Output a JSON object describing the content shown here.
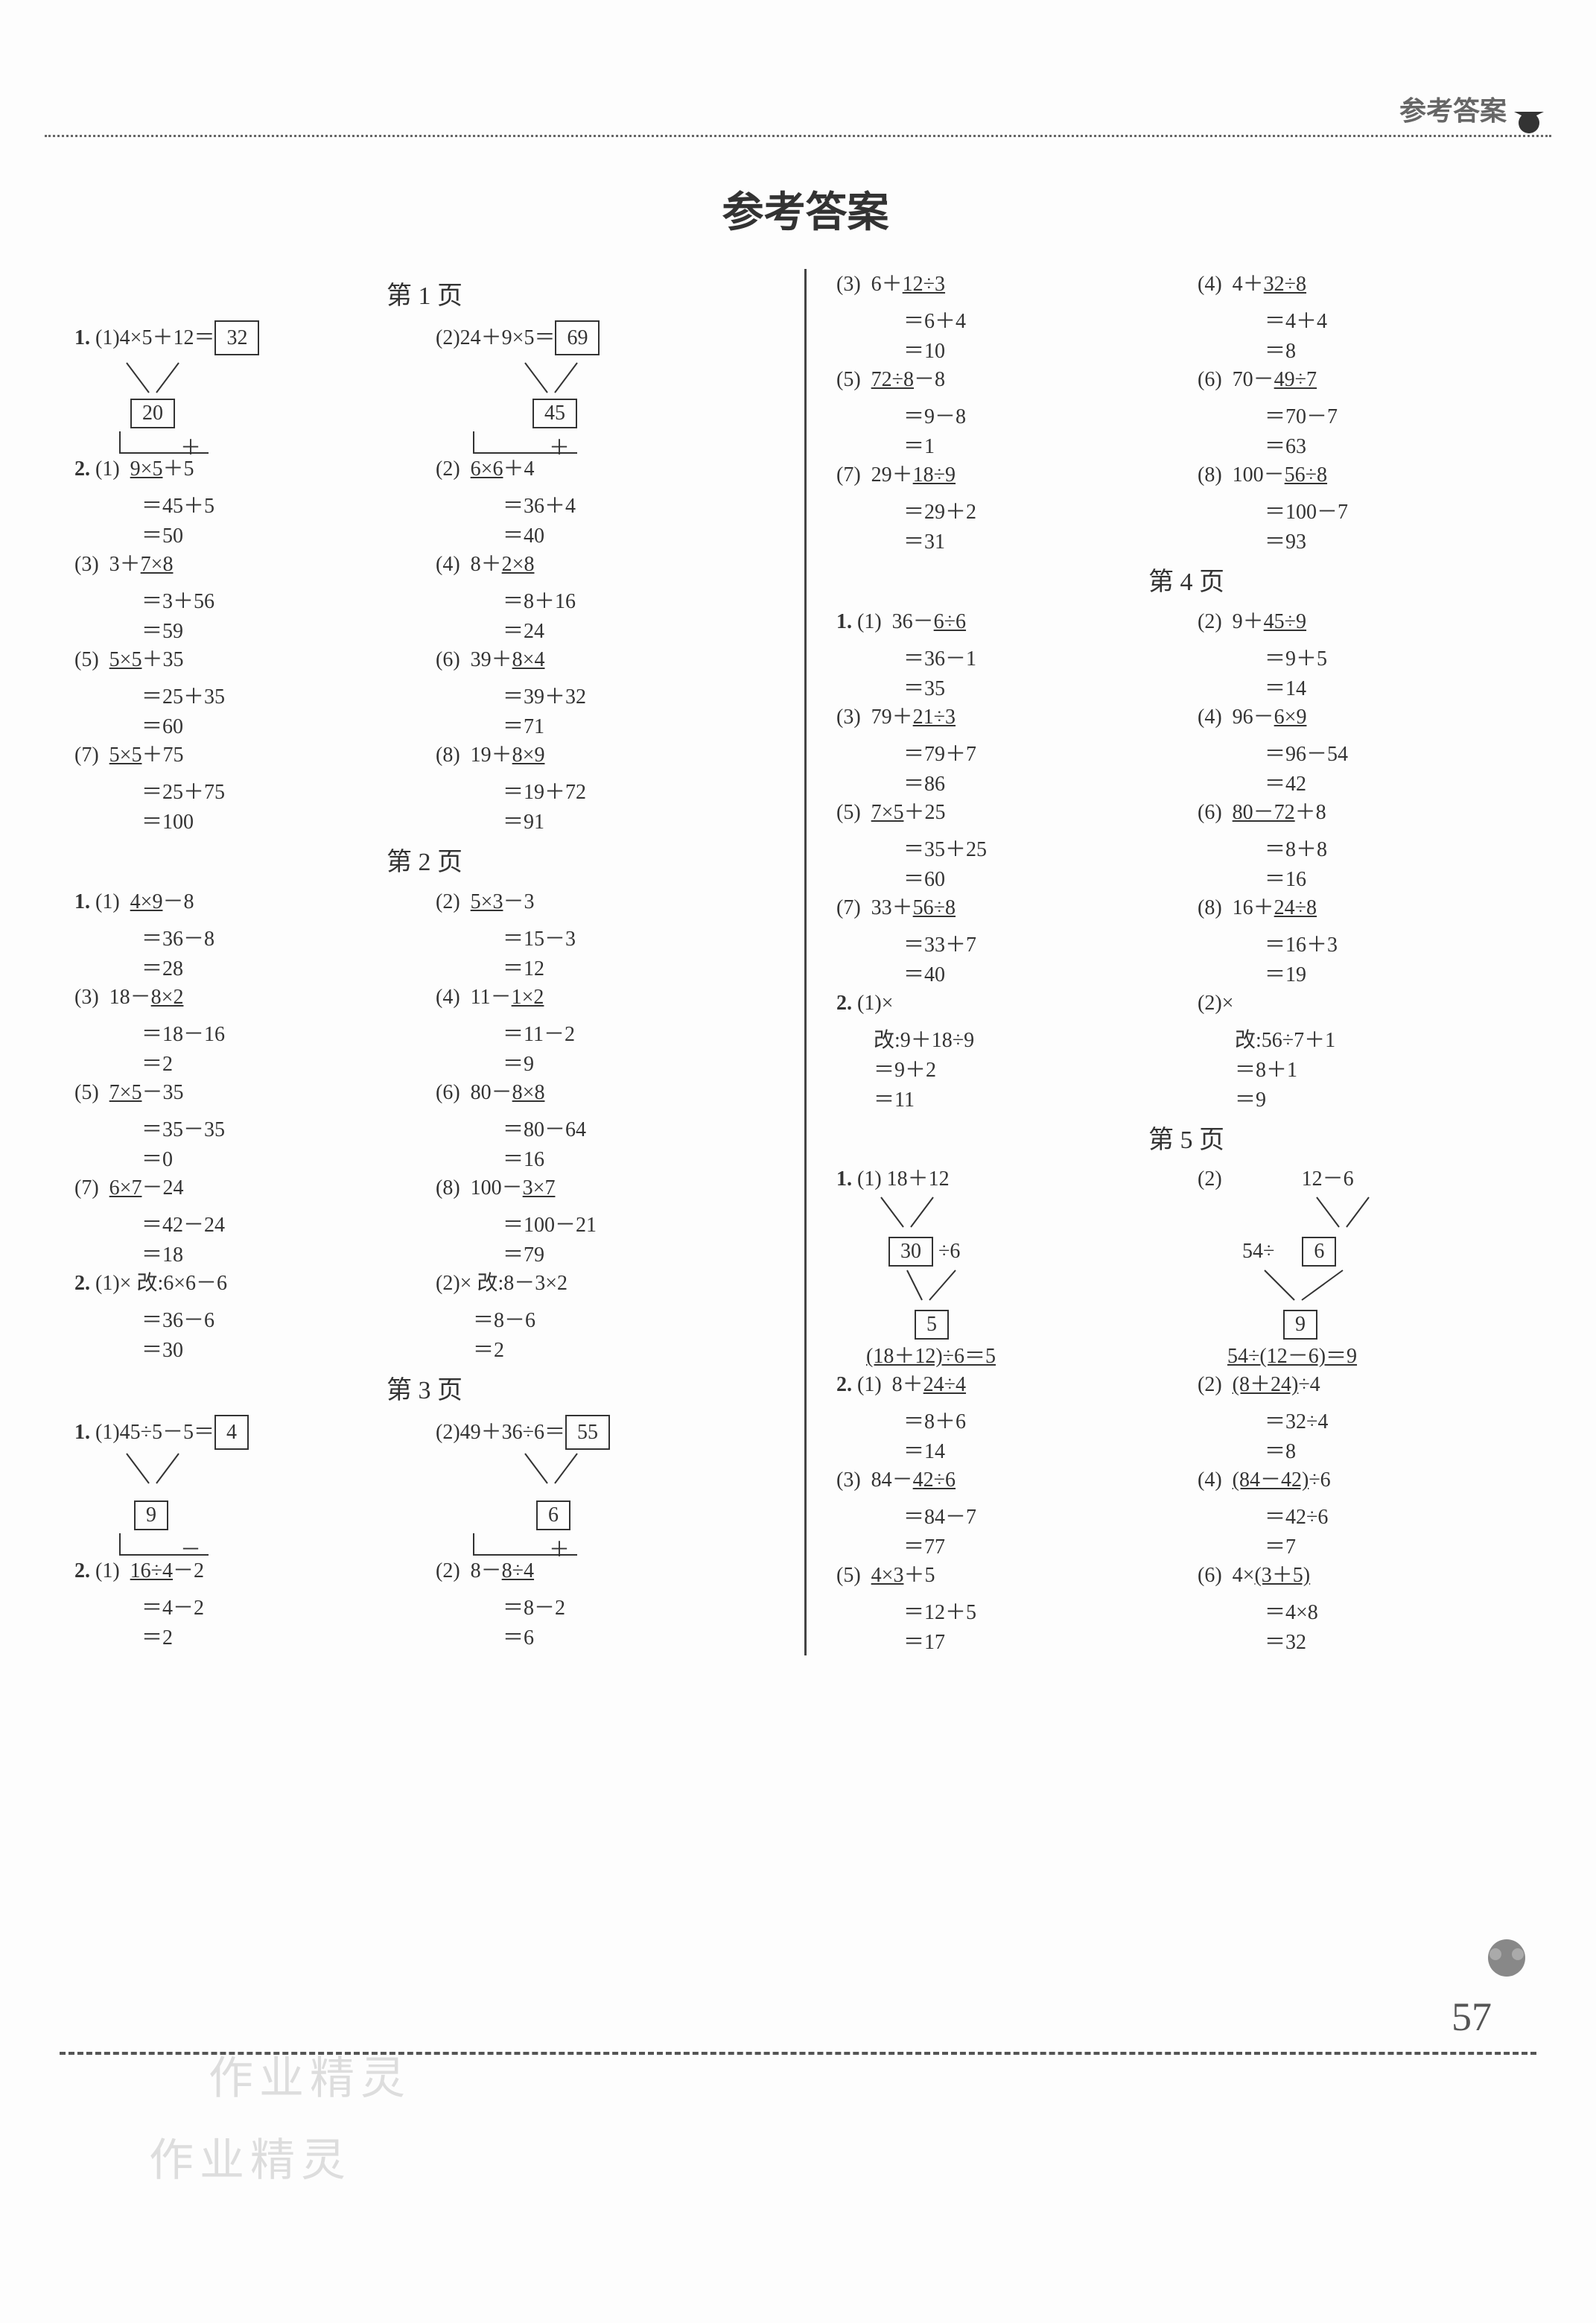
{
  "header_stamp": "参考答案",
  "main_title": "参考答案",
  "page_number": "57",
  "watermark": "作业精灵",
  "labels": {
    "p1": "第 1 页",
    "p2": "第 2 页",
    "p3": "第 3 页",
    "p4": "第 4 页",
    "p5": "第 5 页"
  },
  "p1": {
    "q1a_expr": "4×5＋12＝",
    "q1a_ans": "32",
    "q1a_mid": "20",
    "q1a_op": "＋",
    "q1b_expr": "24＋9×5＝",
    "q1b_ans": "69",
    "q1b_mid": "45",
    "q1b_op": "＋",
    "q2": [
      {
        "n": "(1)",
        "a": "9×5",
        "b": "＋5",
        "s1": "＝45＋5",
        "s2": "＝50"
      },
      {
        "n": "(2)",
        "a": "6×6",
        "b": "＋4",
        "s1": "＝36＋4",
        "s2": "＝40"
      },
      {
        "n": "(3)",
        "a": "3＋",
        "u": "7×8",
        "s1": "＝3＋56",
        "s2": "＝59"
      },
      {
        "n": "(4)",
        "a": "8＋",
        "u": "2×8",
        "s1": "＝8＋16",
        "s2": "＝24"
      },
      {
        "n": "(5)",
        "a": "5×5",
        "b": "＋35",
        "s1": "＝25＋35",
        "s2": "＝60"
      },
      {
        "n": "(6)",
        "a": "39＋",
        "u": "8×4",
        "s1": "＝39＋32",
        "s2": "＝71"
      },
      {
        "n": "(7)",
        "a": "5×5",
        "b": "＋75",
        "s1": "＝25＋75",
        "s2": "＝100"
      },
      {
        "n": "(8)",
        "a": "19＋",
        "u": "8×9",
        "s1": "＝19＋72",
        "s2": "＝91"
      }
    ]
  },
  "p2": {
    "q1": [
      {
        "n": "(1)",
        "a": "4×9",
        "b": "－8",
        "s1": "＝36－8",
        "s2": "＝28"
      },
      {
        "n": "(2)",
        "a": "5×3",
        "b": "－3",
        "s1": "＝15－3",
        "s2": "＝12"
      },
      {
        "n": "(3)",
        "a": "18－",
        "u": "8×2",
        "s1": "＝18－16",
        "s2": "＝2"
      },
      {
        "n": "(4)",
        "a": "11－",
        "u": "1×2",
        "s1": "＝11－2",
        "s2": "＝9"
      },
      {
        "n": "(5)",
        "a": "7×5",
        "b": "－35",
        "s1": "＝35－35",
        "s2": "＝0"
      },
      {
        "n": "(6)",
        "a": "80－",
        "u": "8×8",
        "s1": "＝80－64",
        "s2": "＝16"
      },
      {
        "n": "(7)",
        "a": "6×7",
        "b": "－24",
        "s1": "＝42－24",
        "s2": "＝18"
      },
      {
        "n": "(8)",
        "a": "100－",
        "u": "3×7",
        "s1": "＝100－21",
        "s2": "＝79"
      }
    ],
    "q2a": {
      "head": "(1)× 改:6×6－6",
      "s1": "＝36－6",
      "s2": "＝30"
    },
    "q2b": {
      "head": "(2)× 改:8－3×2",
      "s1": "＝8－6",
      "s2": "＝2"
    }
  },
  "p3": {
    "q1a_expr": "45÷5－5＝",
    "q1a_ans": "4",
    "q1a_mid": "9",
    "q1a_op": "－",
    "q1b_expr": "49＋36÷6＝",
    "q1b_ans": "55",
    "q1b_mid": "6",
    "q1b_op": "＋",
    "q2": [
      {
        "n": "(1)",
        "a": "16÷4",
        "b": "－2",
        "s1": "＝4－2",
        "s2": "＝2"
      },
      {
        "n": "(2)",
        "a": "8－",
        "u": "8÷4",
        "s1": "＝8－2",
        "s2": "＝6"
      },
      {
        "n": "(3)",
        "a": "6＋",
        "u": "12÷3",
        "s1": "＝6＋4",
        "s2": "＝10"
      },
      {
        "n": "(4)",
        "a": "4＋",
        "u": "32÷8",
        "s1": "＝4＋4",
        "s2": "＝8"
      },
      {
        "n": "(5)",
        "a": "72÷8",
        "b": "－8",
        "s1": "＝9－8",
        "s2": "＝1"
      },
      {
        "n": "(6)",
        "a": "70－",
        "u": "49÷7",
        "s1": "＝70－7",
        "s2": "＝63"
      },
      {
        "n": "(7)",
        "a": "29＋",
        "u": "18÷9",
        "s1": "＝29＋2",
        "s2": "＝31"
      },
      {
        "n": "(8)",
        "a": "100－",
        "u": "56÷8",
        "s1": "＝100－7",
        "s2": "＝93"
      }
    ]
  },
  "p4": {
    "q1": [
      {
        "n": "(1)",
        "a": "36－",
        "u": "6÷6",
        "s1": "＝36－1",
        "s2": "＝35"
      },
      {
        "n": "(2)",
        "a": "9＋",
        "u": "45÷9",
        "s1": "＝9＋5",
        "s2": "＝14"
      },
      {
        "n": "(3)",
        "a": "79＋",
        "u": "21÷3",
        "s1": "＝79＋7",
        "s2": "＝86"
      },
      {
        "n": "(4)",
        "a": "96－",
        "u": "6×9",
        "s1": "＝96－54",
        "s2": "＝42"
      },
      {
        "n": "(5)",
        "a": "7×5",
        "b": "＋25",
        "s1": "＝35＋25",
        "s2": "＝60"
      },
      {
        "n": "(6)",
        "a": "80－72",
        "b": "＋8",
        "s1": "＝8＋8",
        "s2": "＝16"
      },
      {
        "n": "(7)",
        "a": "33＋",
        "u": "56÷8",
        "s1": "＝33＋7",
        "s2": "＝40"
      },
      {
        "n": "(8)",
        "a": "16＋",
        "u": "24÷8",
        "s1": "＝16＋3",
        "s2": "＝19"
      }
    ],
    "q2a": {
      "head": "(1)×",
      "c": "改:9＋18÷9",
      "s1": "＝9＋2",
      "s2": "＝11"
    },
    "q2b": {
      "head": "(2)×",
      "c": "改:56÷7＋1",
      "s1": "＝8＋1",
      "s2": "＝9"
    }
  },
  "p5": {
    "q1a_top": "18＋12",
    "q1a_mid": "30",
    "q1a_op": "÷6",
    "q1a_bot": "5",
    "q1a_eq": "(18＋12)÷6＝5",
    "q1b_top": "12－6",
    "q1b_mid": "6",
    "q1b_pre": "54÷",
    "q1b_bot": "9",
    "q1b_eq": "54÷(12－6)＝9",
    "q2": [
      {
        "n": "(1)",
        "a": "8＋",
        "u": "24÷4",
        "s1": "＝8＋6",
        "s2": "＝14"
      },
      {
        "n": "(2)",
        "a": "(8＋24)",
        "b": "÷4",
        "s1": "＝32÷4",
        "s2": "＝8",
        "ua": true
      },
      {
        "n": "(3)",
        "a": "84－",
        "u": "42÷6",
        "s1": "＝84－7",
        "s2": "＝77"
      },
      {
        "n": "(4)",
        "a": "(84－42)",
        "b": "÷6",
        "s1": "＝42÷6",
        "s2": "＝7",
        "ua": true
      },
      {
        "n": "(5)",
        "a": "4×3",
        "b": "＋5",
        "s1": "＝12＋5",
        "s2": "＝17"
      },
      {
        "n": "(6)",
        "a": "4×",
        "u": "(3＋5)",
        "s1": "＝4×8",
        "s2": "＝32"
      }
    ]
  }
}
